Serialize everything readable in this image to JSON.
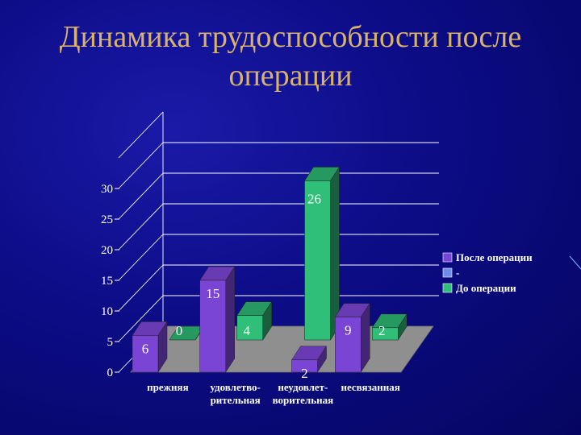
{
  "slide": {
    "title_line1": "Динамика трудоспособности после",
    "title_line2": "операции"
  },
  "colors": {
    "background": "#0c0c86",
    "title": "#d9b26c",
    "floor": "#8f8f8f",
    "after_series": "#7a44d4",
    "before_series": "#2fbf79",
    "axis_text": "#ffffff"
  },
  "chart_data": {
    "type": "bar",
    "style": "3d-clustered",
    "categories": [
      "прежняя",
      "удовлетво-\nрительная",
      "неудовлет-\nворительная",
      "несвязанная"
    ],
    "series": [
      {
        "name": "После операции",
        "values": [
          6,
          15,
          2,
          9
        ],
        "color": "#7a44d4"
      },
      {
        "name": "-",
        "values": [
          null,
          null,
          null,
          null
        ],
        "color": "#6f8fe6"
      },
      {
        "name": "До операции",
        "values": [
          0,
          4,
          26,
          2
        ],
        "color": "#2fbf79"
      }
    ],
    "y_ticks": [
      0,
      5,
      10,
      15,
      20,
      25,
      30
    ],
    "ylim": [
      0,
      30
    ],
    "grid": true,
    "legend_position": "right"
  }
}
